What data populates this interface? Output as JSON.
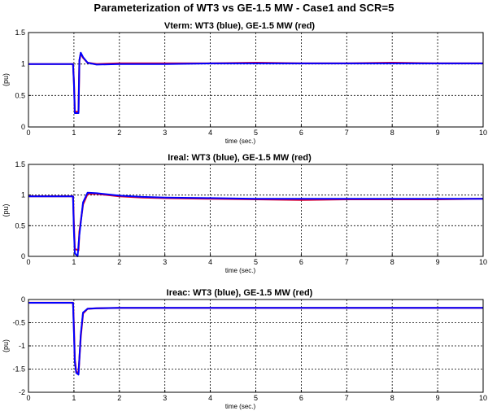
{
  "figure_title": "Parameterization of WT3 vs GE-1.5 MW - Case1 and SCR=5",
  "colors": {
    "blue": "#0000ff",
    "red": "#e0002a",
    "grid": "#000000"
  },
  "chart_data": [
    {
      "type": "line",
      "title": "Vterm: WT3 (blue), GE-1.5 MW (red)",
      "xlabel": "time (sec.)",
      "ylabel": "(pu)",
      "xlim": [
        0,
        10
      ],
      "ylim": [
        0,
        1.5
      ],
      "xticks": [
        "0",
        "1",
        "2",
        "3",
        "4",
        "5",
        "6",
        "7",
        "8",
        "9",
        "10"
      ],
      "yticks": [
        "0",
        "0.5",
        "1",
        "1.5"
      ],
      "grid": true,
      "series": [
        {
          "name": "GE-1.5 MW",
          "color": "#e0002a",
          "x": [
            0,
            0.98,
            1.0,
            1.02,
            1.1,
            1.12,
            1.15,
            1.2,
            1.3,
            1.5,
            2,
            3,
            4,
            5,
            6,
            7,
            8,
            9,
            10
          ],
          "y": [
            1.0,
            1.0,
            0.72,
            0.24,
            0.24,
            1.05,
            1.17,
            1.1,
            1.02,
            1.0,
            1.01,
            1.01,
            1.01,
            1.02,
            1.01,
            1.01,
            1.02,
            1.01,
            1.01
          ]
        },
        {
          "name": "WT3",
          "color": "#0000ff",
          "x": [
            0,
            0.98,
            1.0,
            1.02,
            1.1,
            1.12,
            1.15,
            1.2,
            1.3,
            1.5,
            2,
            3,
            4,
            5,
            6,
            7,
            8,
            9,
            10
          ],
          "y": [
            1.0,
            1.0,
            0.7,
            0.22,
            0.22,
            1.06,
            1.18,
            1.11,
            1.02,
            0.99,
            1.0,
            1.0,
            1.01,
            1.01,
            1.01,
            1.01,
            1.01,
            1.01,
            1.01
          ]
        }
      ]
    },
    {
      "type": "line",
      "title": "Ireal: WT3 (blue), GE-1.5 MW (red)",
      "xlabel": "time (sec.)",
      "ylabel": "(pu)",
      "xlim": [
        0,
        10
      ],
      "ylim": [
        0,
        1.5
      ],
      "xticks": [
        "0",
        "1",
        "2",
        "3",
        "4",
        "5",
        "6",
        "7",
        "8",
        "9",
        "10"
      ],
      "yticks": [
        "0",
        "0.5",
        "1",
        "1.5"
      ],
      "grid": true,
      "series": [
        {
          "name": "GE-1.5 MW",
          "color": "#e0002a",
          "x": [
            0,
            0.98,
            1.0,
            1.02,
            1.1,
            1.12,
            1.2,
            1.3,
            1.5,
            2,
            2.5,
            3,
            4,
            5,
            6,
            7,
            8,
            9,
            10
          ],
          "y": [
            0.98,
            0.98,
            0.5,
            0.12,
            0.1,
            0.4,
            0.85,
            1.02,
            1.02,
            0.98,
            0.96,
            0.95,
            0.94,
            0.93,
            0.92,
            0.93,
            0.93,
            0.93,
            0.94
          ]
        },
        {
          "name": "WT3",
          "color": "#0000ff",
          "x": [
            0,
            0.98,
            1.0,
            1.02,
            1.08,
            1.12,
            1.2,
            1.3,
            1.5,
            2,
            2.5,
            3,
            4,
            5,
            6,
            7,
            8,
            9,
            10
          ],
          "y": [
            0.98,
            0.98,
            0.4,
            0.05,
            0.0,
            0.35,
            0.88,
            1.04,
            1.03,
            0.99,
            0.97,
            0.96,
            0.95,
            0.94,
            0.94,
            0.94,
            0.94,
            0.94,
            0.94
          ]
        }
      ]
    },
    {
      "type": "line",
      "title": "Ireac: WT3 (blue), GE-1.5 MW (red)",
      "xlabel": "time (sec.)",
      "ylabel": "(pu)",
      "xlim": [
        0,
        10
      ],
      "ylim": [
        -2,
        0
      ],
      "xticks": [
        "0",
        "1",
        "2",
        "3",
        "4",
        "5",
        "6",
        "7",
        "8",
        "9",
        "10"
      ],
      "yticks": [
        "-2",
        "-1.5",
        "-1",
        "-0.5",
        "0"
      ],
      "grid": true,
      "series": [
        {
          "name": "GE-1.5 MW",
          "color": "#e0002a",
          "x": [
            0,
            0.98,
            1.0,
            1.02,
            1.05,
            1.1,
            1.15,
            1.2,
            1.3,
            1.5,
            2,
            3,
            4,
            5,
            6,
            7,
            8,
            9,
            10
          ],
          "y": [
            -0.07,
            -0.07,
            -0.6,
            -1.3,
            -1.55,
            -1.6,
            -0.8,
            -0.3,
            -0.2,
            -0.19,
            -0.18,
            -0.18,
            -0.18,
            -0.18,
            -0.18,
            -0.18,
            -0.18,
            -0.18,
            -0.18
          ]
        },
        {
          "name": "WT3",
          "color": "#0000ff",
          "x": [
            0,
            0.98,
            1.0,
            1.02,
            1.05,
            1.1,
            1.15,
            1.2,
            1.3,
            1.5,
            2,
            3,
            4,
            5,
            6,
            7,
            8,
            9,
            10
          ],
          "y": [
            -0.07,
            -0.07,
            -0.7,
            -1.35,
            -1.58,
            -1.62,
            -0.75,
            -0.28,
            -0.2,
            -0.19,
            -0.18,
            -0.18,
            -0.18,
            -0.18,
            -0.18,
            -0.18,
            -0.18,
            -0.18,
            -0.18
          ]
        }
      ]
    }
  ]
}
